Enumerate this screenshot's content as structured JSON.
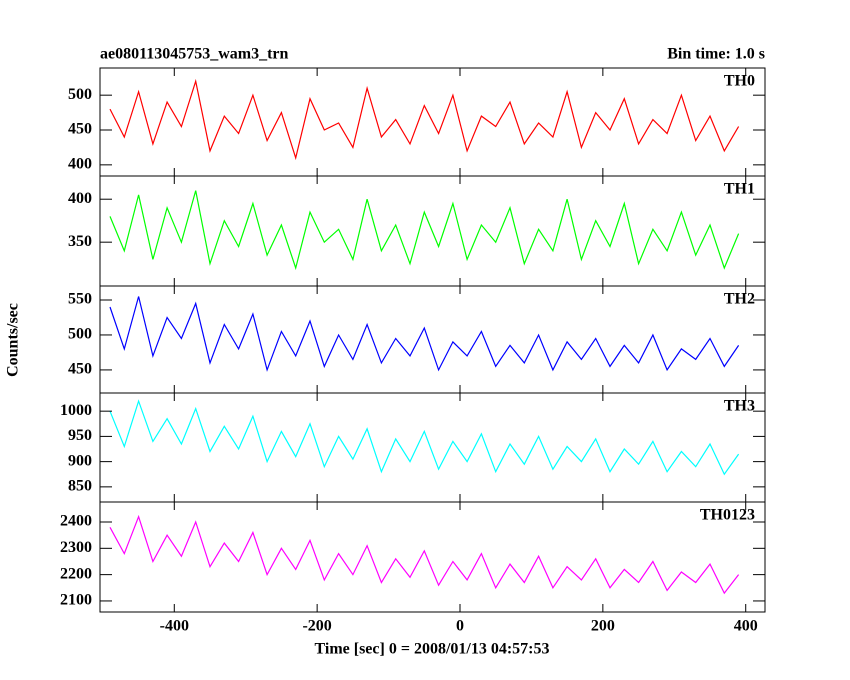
{
  "figure": {
    "title": "ae080113045753_wam3_trn",
    "subtitle": "Bin time: 1.0 s",
    "ylabel": "Counts/sec",
    "xlabel": "Time [sec] 0 = 2008/01/13 04:57:53",
    "xlim": [
      -504,
      427
    ],
    "xticks": [
      -400,
      -200,
      0,
      200,
      400
    ]
  },
  "chart_data": [
    {
      "type": "line",
      "ylim": [
        384,
        539
      ],
      "yticks": [
        400,
        450,
        500
      ],
      "x": [
        -490,
        -470,
        -450,
        -430,
        -410,
        -390,
        -370,
        -350,
        -330,
        -310,
        -290,
        -270,
        -250,
        -230,
        -210,
        -190,
        -170,
        -150,
        -130,
        -110,
        -90,
        -70,
        -50,
        -30,
        -10,
        10,
        30,
        50,
        70,
        90,
        110,
        130,
        150,
        170,
        190,
        210,
        230,
        250,
        270,
        290,
        310,
        330,
        350,
        370,
        390
      ],
      "series": [
        {
          "name": "TH0",
          "color": "#ff0000",
          "values": [
            480,
            440,
            505,
            430,
            490,
            455,
            520,
            420,
            470,
            445,
            500,
            435,
            475,
            410,
            495,
            450,
            460,
            425,
            510,
            440,
            465,
            430,
            485,
            445,
            500,
            420,
            470,
            455,
            490,
            430,
            460,
            440,
            505,
            425,
            475,
            450,
            495,
            430,
            465,
            445,
            500,
            435,
            470,
            420,
            455
          ]
        }
      ]
    },
    {
      "type": "line",
      "ylim": [
        299,
        427
      ],
      "yticks": [
        350,
        400
      ],
      "x": [
        -490,
        -470,
        -450,
        -430,
        -410,
        -390,
        -370,
        -350,
        -330,
        -310,
        -290,
        -270,
        -250,
        -230,
        -210,
        -190,
        -170,
        -150,
        -130,
        -110,
        -90,
        -70,
        -50,
        -30,
        -10,
        10,
        30,
        50,
        70,
        90,
        110,
        130,
        150,
        170,
        190,
        210,
        230,
        250,
        270,
        290,
        310,
        330,
        350,
        370,
        390
      ],
      "series": [
        {
          "name": "TH1",
          "color": "#00ff00",
          "values": [
            380,
            340,
            405,
            330,
            390,
            350,
            410,
            325,
            375,
            345,
            395,
            335,
            370,
            320,
            385,
            350,
            365,
            330,
            400,
            340,
            370,
            325,
            385,
            345,
            395,
            330,
            370,
            350,
            390,
            325,
            365,
            340,
            400,
            330,
            375,
            345,
            395,
            325,
            365,
            340,
            385,
            335,
            370,
            320,
            360
          ]
        }
      ]
    },
    {
      "type": "line",
      "ylim": [
        417,
        570
      ],
      "yticks": [
        450,
        500,
        550
      ],
      "x": [
        -490,
        -470,
        -450,
        -430,
        -410,
        -390,
        -370,
        -350,
        -330,
        -310,
        -290,
        -270,
        -250,
        -230,
        -210,
        -190,
        -170,
        -150,
        -130,
        -110,
        -90,
        -70,
        -50,
        -30,
        -10,
        10,
        30,
        50,
        70,
        90,
        110,
        130,
        150,
        170,
        190,
        210,
        230,
        250,
        270,
        290,
        310,
        330,
        350,
        370,
        390
      ],
      "series": [
        {
          "name": "TH2",
          "color": "#0000ff",
          "values": [
            540,
            480,
            555,
            470,
            525,
            495,
            545,
            460,
            515,
            480,
            530,
            450,
            505,
            470,
            520,
            455,
            500,
            465,
            515,
            460,
            495,
            470,
            510,
            450,
            490,
            470,
            505,
            455,
            485,
            460,
            500,
            450,
            490,
            465,
            495,
            455,
            485,
            460,
            500,
            450,
            480,
            465,
            495,
            455,
            485
          ]
        }
      ]
    },
    {
      "type": "line",
      "ylim": [
        820,
        1036
      ],
      "yticks": [
        850,
        900,
        950,
        1000
      ],
      "x": [
        -490,
        -470,
        -450,
        -430,
        -410,
        -390,
        -370,
        -350,
        -330,
        -310,
        -290,
        -270,
        -250,
        -230,
        -210,
        -190,
        -170,
        -150,
        -130,
        -110,
        -90,
        -70,
        -50,
        -30,
        -10,
        10,
        30,
        50,
        70,
        90,
        110,
        130,
        150,
        170,
        190,
        210,
        230,
        250,
        270,
        290,
        310,
        330,
        350,
        370,
        390
      ],
      "series": [
        {
          "name": "TH3",
          "color": "#00ffff",
          "values": [
            1000,
            930,
            1020,
            940,
            985,
            935,
            1005,
            920,
            970,
            925,
            990,
            900,
            960,
            910,
            975,
            890,
            950,
            905,
            965,
            880,
            945,
            900,
            960,
            885,
            940,
            900,
            955,
            880,
            935,
            895,
            950,
            885,
            930,
            900,
            945,
            880,
            925,
            895,
            940,
            880,
            920,
            890,
            935,
            875,
            915
          ]
        }
      ]
    },
    {
      "type": "line",
      "ylim": [
        2058,
        2476
      ],
      "yticks": [
        2100,
        2200,
        2300,
        2400
      ],
      "x": [
        -490,
        -470,
        -450,
        -430,
        -410,
        -390,
        -370,
        -350,
        -330,
        -310,
        -290,
        -270,
        -250,
        -230,
        -210,
        -190,
        -170,
        -150,
        -130,
        -110,
        -90,
        -70,
        -50,
        -30,
        -10,
        10,
        30,
        50,
        70,
        90,
        110,
        130,
        150,
        170,
        190,
        210,
        230,
        250,
        270,
        290,
        310,
        330,
        350,
        370,
        390
      ],
      "series": [
        {
          "name": "TH0123",
          "color": "#ff00ff",
          "values": [
            2380,
            2280,
            2420,
            2250,
            2350,
            2270,
            2400,
            2230,
            2320,
            2250,
            2360,
            2200,
            2300,
            2220,
            2330,
            2180,
            2280,
            2200,
            2310,
            2170,
            2260,
            2190,
            2290,
            2160,
            2250,
            2180,
            2280,
            2150,
            2240,
            2170,
            2270,
            2150,
            2230,
            2180,
            2260,
            2150,
            2220,
            2170,
            2250,
            2140,
            2210,
            2170,
            2240,
            2130,
            2200
          ]
        }
      ]
    }
  ]
}
